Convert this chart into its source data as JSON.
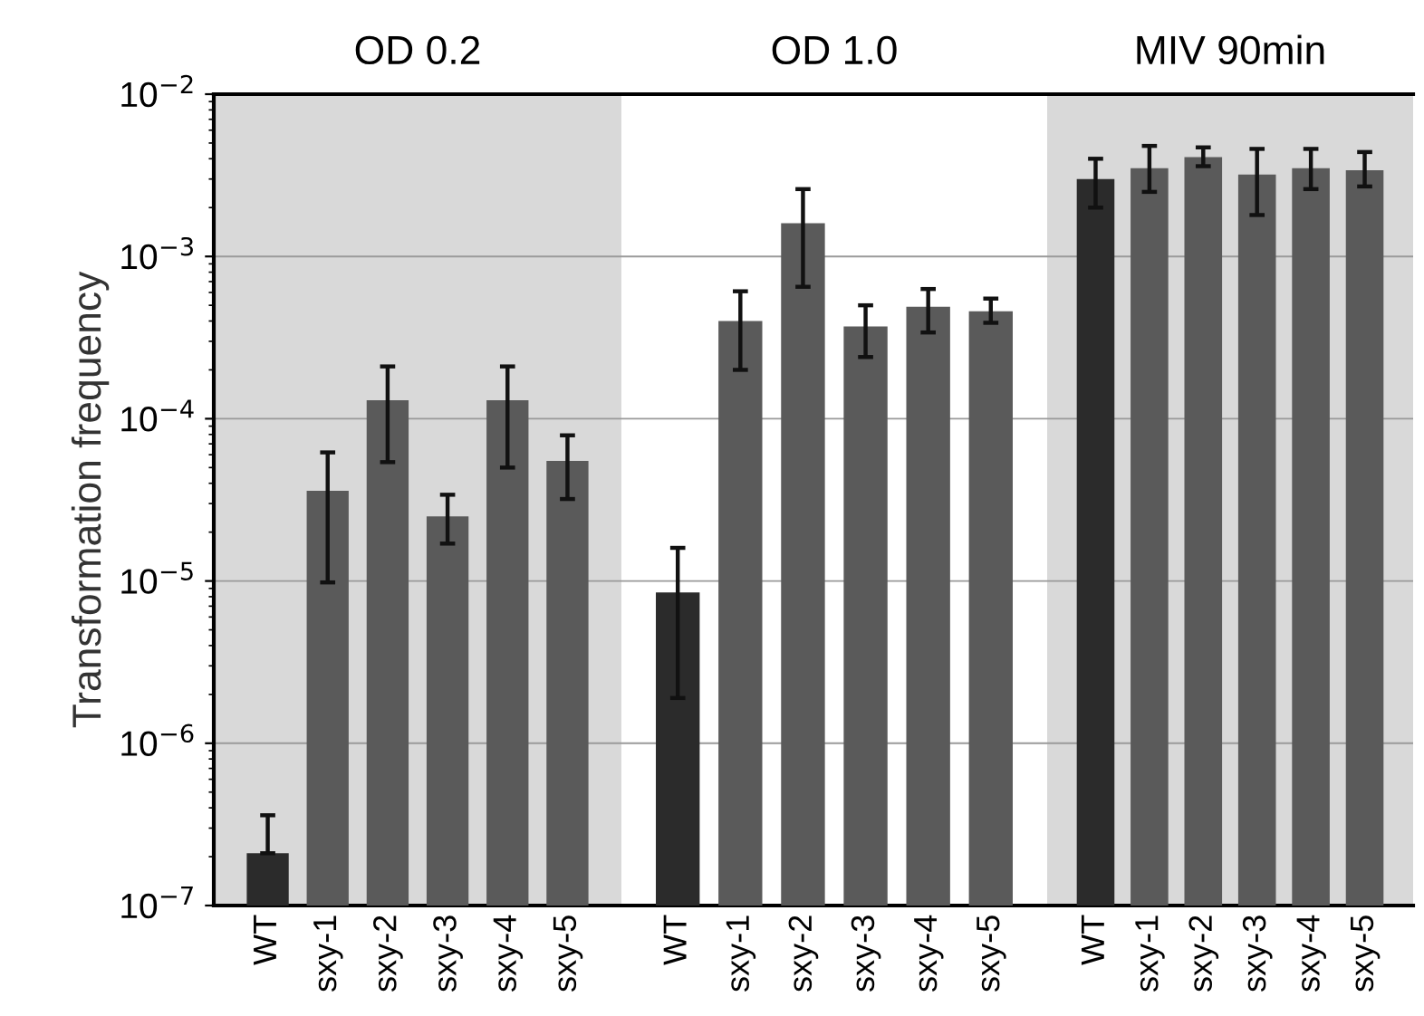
{
  "chart_data": [
    {
      "type": "bar",
      "title": "OD 0.2",
      "ylabel": "Transformation frequency",
      "categories": [
        "WT",
        "sxy-1",
        "sxy-2",
        "sxy-3",
        "sxy-4",
        "sxy-5"
      ],
      "values": [
        2.1e-07,
        3.6e-05,
        0.00013,
        2.5e-05,
        0.00013,
        5.5e-05
      ],
      "errors": [
        [
          2.1e-07,
          3.6e-07
        ],
        [
          9.8e-06,
          6.2e-05
        ],
        [
          5.4e-05,
          0.00021
        ],
        [
          1.7e-05,
          3.4e-05
        ],
        [
          5e-05,
          0.00021
        ],
        [
          3.2e-05,
          7.9e-05
        ]
      ],
      "colors": [
        "#2b2b2b",
        "#5a5a5a",
        "#5a5a5a",
        "#5a5a5a",
        "#5a5a5a",
        "#5a5a5a"
      ],
      "log": "y",
      "ylim": [
        1e-07,
        0.01
      ],
      "yticks": [
        {
          "value": 1e-07,
          "label": "10$^{−7}$"
        },
        {
          "value": 1e-06,
          "label": "10$^{−6}$"
        },
        {
          "value": 1e-05,
          "label": "10$^{−5}$"
        },
        {
          "value": 0.0001,
          "label": "10$^{−4}$"
        },
        {
          "value": 0.001,
          "label": "10$^{−3}$"
        },
        {
          "value": 0.01,
          "label": "10$^{−2}$"
        }
      ],
      "grid": "y",
      "bands": [
        {
          "axis": "y",
          "from": 1e-07,
          "to": 0.01,
          "color": "#d9d9d9"
        }
      ]
    },
    {
      "type": "bar",
      "title": "OD 1.0",
      "categories": [
        "WT",
        "sxy-1",
        "sxy-2",
        "sxy-3",
        "sxy-4",
        "sxy-5"
      ],
      "values": [
        8.5e-06,
        0.0004,
        0.0016,
        0.00037,
        0.00049,
        0.00046
      ],
      "errors": [
        [
          1.9e-06,
          1.6e-05
        ],
        [
          0.0002,
          0.00061
        ],
        [
          0.00065,
          0.0026
        ],
        [
          0.00024,
          0.0005
        ],
        [
          0.00034,
          0.00063
        ],
        [
          0.00039,
          0.00055
        ]
      ],
      "colors": [
        "#2b2b2b",
        "#5a5a5a",
        "#5a5a5a",
        "#5a5a5a",
        "#5a5a5a",
        "#5a5a5a"
      ],
      "log": "y",
      "ylim": [
        1e-07,
        0.01
      ],
      "tick_labels": "x",
      "grid": "y"
    },
    {
      "type": "bar",
      "title": "MIV 90min",
      "categories": [
        "WT",
        "sxy-1",
        "sxy-2",
        "sxy-3",
        "sxy-4",
        "sxy-5"
      ],
      "values": [
        0.003,
        0.0035,
        0.0041,
        0.0032,
        0.0035,
        0.0034
      ],
      "errors": [
        [
          0.002,
          0.004
        ],
        [
          0.0025,
          0.0048
        ],
        [
          0.0036,
          0.0047
        ],
        [
          0.0018,
          0.0046
        ],
        [
          0.0026,
          0.0046
        ],
        [
          0.0027,
          0.0044
        ]
      ],
      "colors": [
        "#2b2b2b",
        "#5a5a5a",
        "#5a5a5a",
        "#5a5a5a",
        "#5a5a5a",
        "#5a5a5a"
      ],
      "log": "y",
      "ylim": [
        1e-07,
        0.01
      ],
      "tick_labels": "x",
      "grid": "y",
      "bands": [
        {
          "axis": "y",
          "from": 1e-07,
          "to": 0.01,
          "color": "#d9d9d9"
        }
      ]
    }
  ]
}
